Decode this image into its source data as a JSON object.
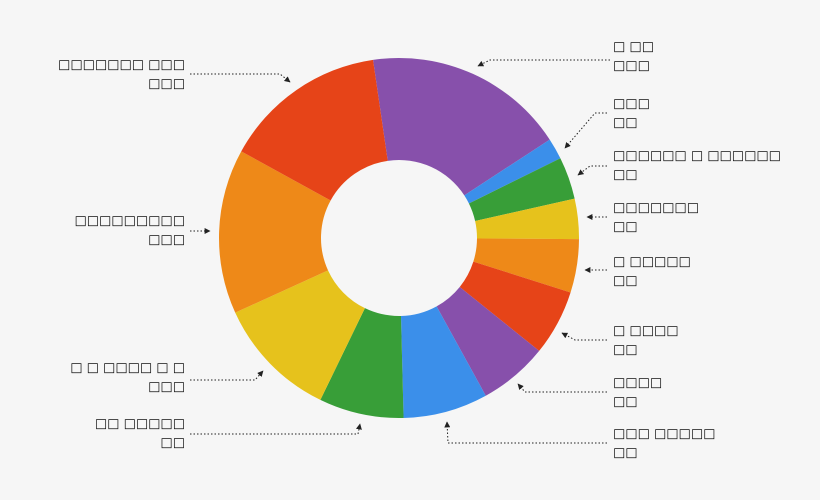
{
  "chart_data": {
    "type": "donut",
    "categories": [
      "□ □□",
      "□□□",
      "□□□□□□ □ □□□□□□",
      "□□□□□□□",
      "□ □□□□□",
      "□ □□□□",
      "□□□□",
      "□□□ □□□□□",
      "□□ □□□□□",
      "□ □ □□□□ □ □",
      "□□□□□□□□□",
      "□□□□□□□ □□□"
    ],
    "details": [
      "□□□",
      "□□",
      "□□",
      "□□",
      "□□",
      "□□",
      "□□",
      "□□",
      "□□",
      "□□□",
      "□□□",
      "□□□"
    ],
    "values": [
      18.1,
      1.9,
      3.8,
      3.6,
      4.8,
      5.9,
      6.2,
      7.6,
      7.6,
      11.0,
      14.8,
      14.7
    ],
    "colors": [
      "#8750ab",
      "#3b8fea",
      "#389e38",
      "#e6c21c",
      "#ee8918",
      "#e64418",
      "#8750ab",
      "#3b8fea",
      "#389e38",
      "#e6c21c",
      "#ee8918",
      "#e64418"
    ]
  }
}
